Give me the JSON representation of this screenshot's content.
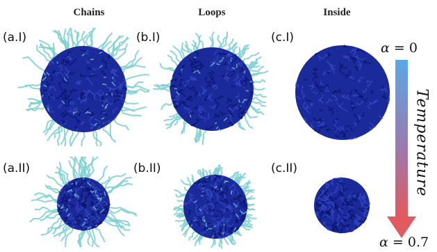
{
  "columns": [
    "Chains",
    "Loops",
    "Inside"
  ],
  "panels": [
    {
      "label": "(a.I)",
      "row": 0,
      "col": 0,
      "corona": "long",
      "core_size": "large"
    },
    {
      "label": "(b.I)",
      "row": 0,
      "col": 1,
      "corona": "medium",
      "core_size": "large"
    },
    {
      "label": "(c.I)",
      "row": 0,
      "col": 2,
      "corona": "none",
      "core_size": "large"
    },
    {
      "label": "(a.II)",
      "row": 1,
      "col": 0,
      "corona": "long",
      "core_size": "small"
    },
    {
      "label": "(b.II)",
      "row": 1,
      "col": 1,
      "corona": "dense",
      "core_size": "medium"
    },
    {
      "label": "(c.II)",
      "row": 1,
      "col": 2,
      "corona": "none",
      "core_size": "small"
    }
  ],
  "scale": {
    "top_symbol": "α",
    "top_value": "= 0",
    "bottom_symbol": "α",
    "bottom_value": "= 0.7",
    "axis_label": "Temperature"
  },
  "colors": {
    "core": "#1b2a9a",
    "core_dark": "#0c1470",
    "corona": "#7fd0d3",
    "arrow_top": "#5aa0e0",
    "arrow_bottom": "#e05a5e"
  }
}
